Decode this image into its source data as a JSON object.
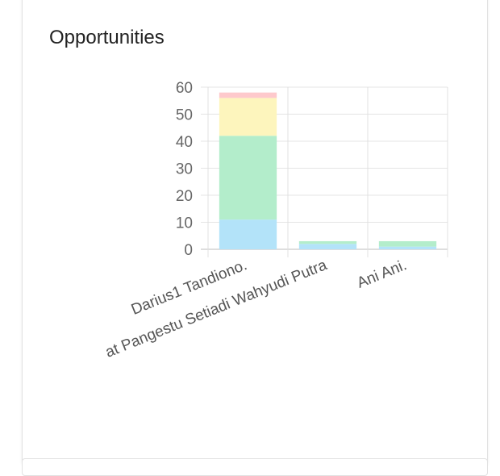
{
  "card": {
    "title": "Opportunities"
  },
  "chart_data": {
    "type": "bar",
    "stacked": true,
    "categories": [
      "Darius1 Tandiono.",
      "at Pangestu Setiadi Wahyudi Putra",
      "Ani Ani."
    ],
    "series": [
      {
        "color": "#b3e3f9",
        "values": [
          11,
          2,
          1
        ]
      },
      {
        "color": "#b3edcb",
        "values": [
          31,
          1,
          2
        ]
      },
      {
        "color": "#fdf5bd",
        "values": [
          14,
          0,
          0
        ]
      },
      {
        "color": "#fec9cc",
        "values": [
          2,
          0,
          0
        ]
      }
    ],
    "ylim": [
      0,
      60
    ],
    "yticks": [
      "0",
      "10",
      "20",
      "30",
      "40",
      "50",
      "60"
    ],
    "grid": true,
    "legend": "none"
  }
}
